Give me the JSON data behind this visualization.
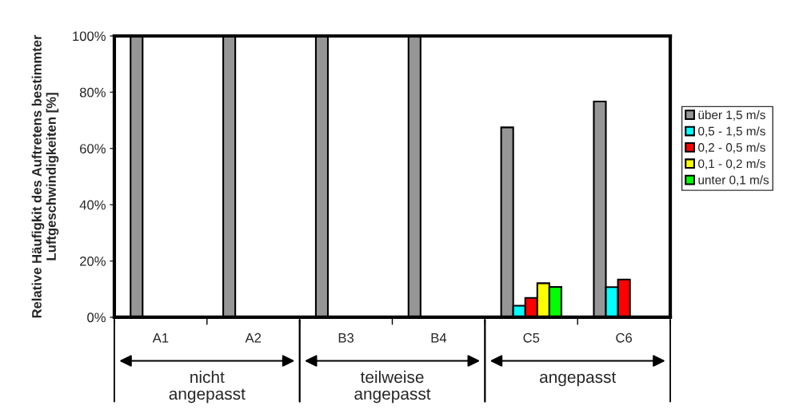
{
  "chart_data": {
    "type": "bar",
    "ylabel": "Relative Häufigkit des Auftretens bestimmter\nLuftgeschwindigkeiten [%]",
    "categories": [
      "A1",
      "A2",
      "B3",
      "B4",
      "C5",
      "C6"
    ],
    "series": [
      {
        "name": "über 1,5 m/s",
        "color": "#969696",
        "values": [
          100,
          100,
          100,
          100,
          67.5,
          76.7
        ]
      },
      {
        "name": "0,5 - 1,5 m/s",
        "color": "#00ffff",
        "values": [
          null,
          null,
          null,
          null,
          4.1,
          10.7
        ]
      },
      {
        "name": "0,2 - 0,5 m/s",
        "color": "#ff0000",
        "values": [
          null,
          null,
          null,
          null,
          6.9,
          13.4
        ]
      },
      {
        "name": "0,1 - 0,2 m/s",
        "color": "#ffff00",
        "values": [
          null,
          null,
          null,
          null,
          12.1,
          null
        ]
      },
      {
        "name": "unter 0,1 m/s",
        "color": "#00ff00",
        "values": [
          null,
          null,
          null,
          null,
          10.8,
          null
        ]
      }
    ],
    "ylim": [
      0,
      100
    ],
    "yticks": [
      {
        "value": 0,
        "label": "0%"
      },
      {
        "value": 20,
        "label": "20%"
      },
      {
        "value": 40,
        "label": "40%"
      },
      {
        "value": 60,
        "label": "60%"
      },
      {
        "value": 80,
        "label": "80%"
      },
      {
        "value": 100,
        "label": "100%"
      }
    ],
    "annotations": [
      "nicht\nangepasst",
      "teilweise\nangepasst",
      "angepasst"
    ],
    "legend": "right",
    "grid": false
  }
}
